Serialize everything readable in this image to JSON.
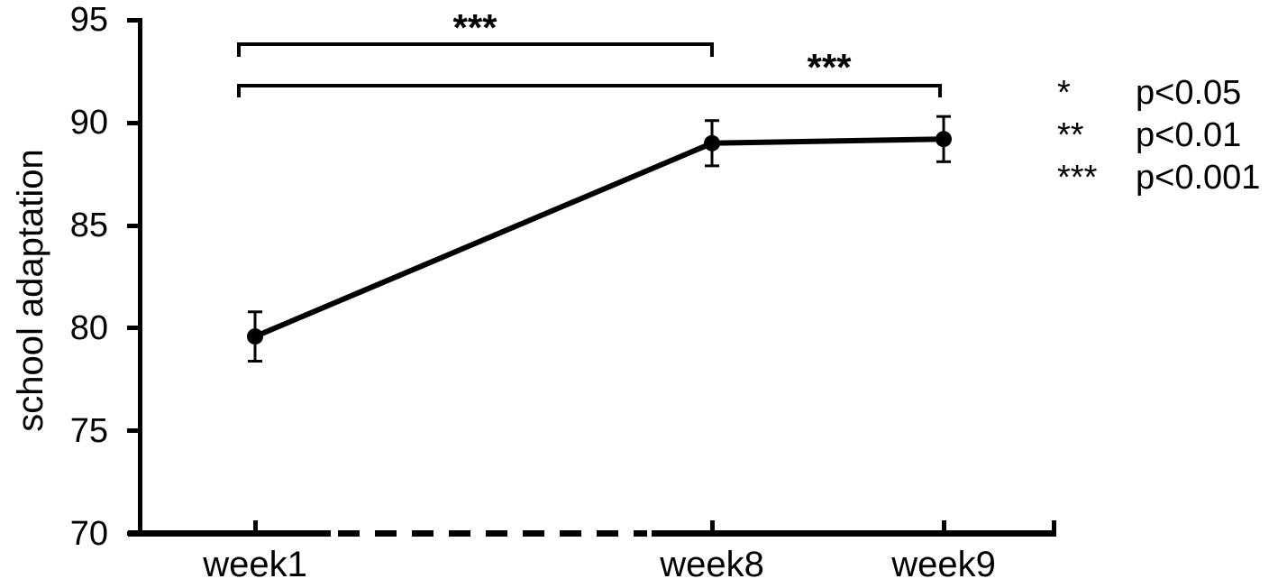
{
  "chart_data": {
    "type": "line",
    "title": "",
    "xlabel": "",
    "ylabel": "school adaptation",
    "categories": [
      "week1",
      "week8",
      "week9"
    ],
    "series": [
      {
        "name": "school adaptation",
        "values": [
          79.6,
          89.0,
          89.2
        ],
        "errors": [
          1.2,
          1.1,
          1.1
        ]
      }
    ],
    "ylim": [
      70,
      95
    ],
    "yticks": [
      "95",
      "90",
      "85",
      "80",
      "75",
      "70"
    ],
    "grid": false,
    "x_axis_break_between": [
      "week1",
      "week8"
    ],
    "annotations": [
      {
        "type": "significance-bracket",
        "from": "week1",
        "to": "week8",
        "label": "***"
      },
      {
        "type": "significance-bracket",
        "from": "week1",
        "to": "week9",
        "label": "***"
      }
    ],
    "legend_position": "upper right",
    "legend": [
      {
        "symbol": "*",
        "label": "p<0.05"
      },
      {
        "symbol": "**",
        "label": "p<0.01"
      },
      {
        "symbol": "***",
        "label": "p<0.001"
      }
    ]
  },
  "colors": {
    "foreground": "#000000",
    "background": "#ffffff"
  }
}
